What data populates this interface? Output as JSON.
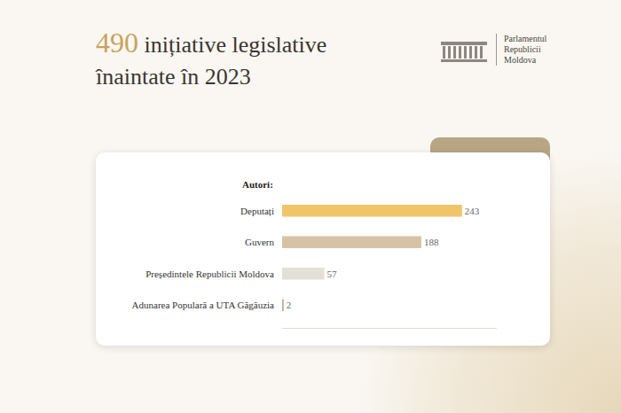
{
  "chart_data": {
    "type": "bar",
    "orientation": "horizontal",
    "title": "490 inițiative legislative înaintate în 2023",
    "ylabel": "Autori:",
    "annotations": [
      "Parlamentul Republicii Moldova"
    ],
    "categories": [
      "Deputați",
      "Guvern",
      "Președintele Republicii Moldova",
      "Adunarea Populară a UTA Găgăuzia"
    ],
    "values": [
      243,
      188,
      57,
      2
    ],
    "colors": [
      "#f2c46a",
      "#d6c3a5",
      "#e3e0d8",
      "#b9a98c"
    ],
    "xlim": [
      0,
      290
    ],
    "data_labels": true,
    "tick_labels": "y",
    "grid": false
  }
}
